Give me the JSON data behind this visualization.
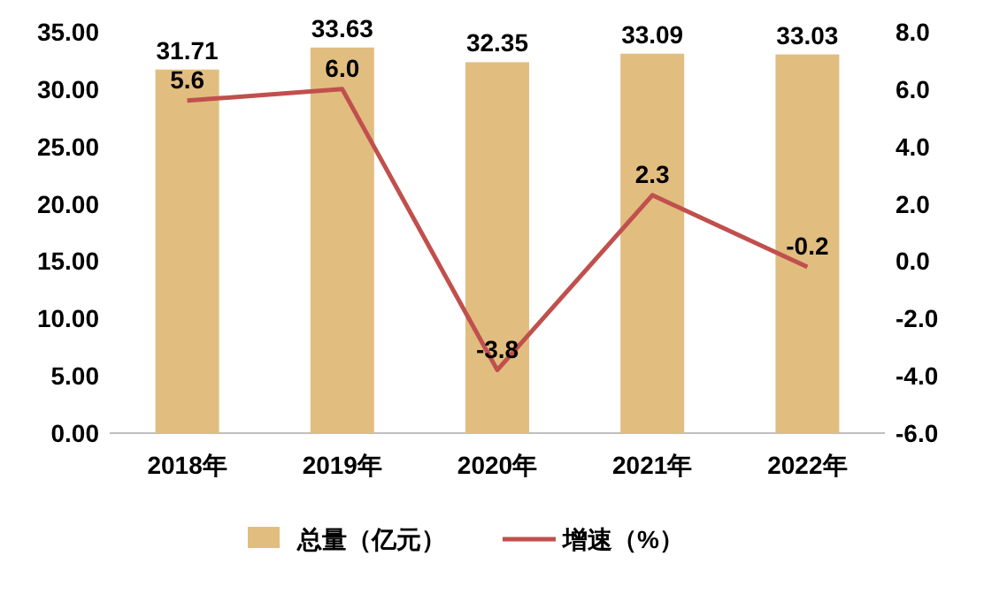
{
  "chart_data": {
    "type": "bar",
    "categories": [
      "2018年",
      "2019年",
      "2020年",
      "2021年",
      "2022年"
    ],
    "series": [
      {
        "name": "总量（亿元）",
        "color": "#e2bd80",
        "values": [
          31.71,
          33.63,
          32.35,
          33.09,
          33.03
        ],
        "value_labels": [
          "31.71",
          "33.63",
          "32.35",
          "33.09",
          "33.03"
        ]
      },
      {
        "name": "增速（%）",
        "type": "line",
        "axis": "y2",
        "color": "#c0504d",
        "values": [
          5.6,
          6.0,
          -3.8,
          2.3,
          -0.2
        ],
        "value_labels": [
          "5.6",
          "6.0",
          "-3.8",
          "2.3",
          "-0.2"
        ]
      }
    ],
    "ylim": [
      0,
      35
    ],
    "yticks": [
      {
        "value": 0,
        "label": "0.00"
      },
      {
        "value": 5,
        "label": "5.00"
      },
      {
        "value": 10,
        "label": "10.00"
      },
      {
        "value": 15,
        "label": "15.00"
      },
      {
        "value": 20,
        "label": "20.00"
      },
      {
        "value": 25,
        "label": "25.00"
      },
      {
        "value": 30,
        "label": "30.00"
      },
      {
        "value": 35,
        "label": "35.00"
      }
    ],
    "y2lim": [
      -6,
      8
    ],
    "y2ticks": [
      {
        "value": -6,
        "label": "-6.0"
      },
      {
        "value": -4,
        "label": "-4.0"
      },
      {
        "value": -2,
        "label": "-2.0"
      },
      {
        "value": 0,
        "label": "0.0"
      },
      {
        "value": 2,
        "label": "2.0"
      },
      {
        "value": 4,
        "label": "4.0"
      },
      {
        "value": 6,
        "label": "6.0"
      },
      {
        "value": 8,
        "label": "8.0"
      }
    ],
    "legend": "bottom"
  }
}
